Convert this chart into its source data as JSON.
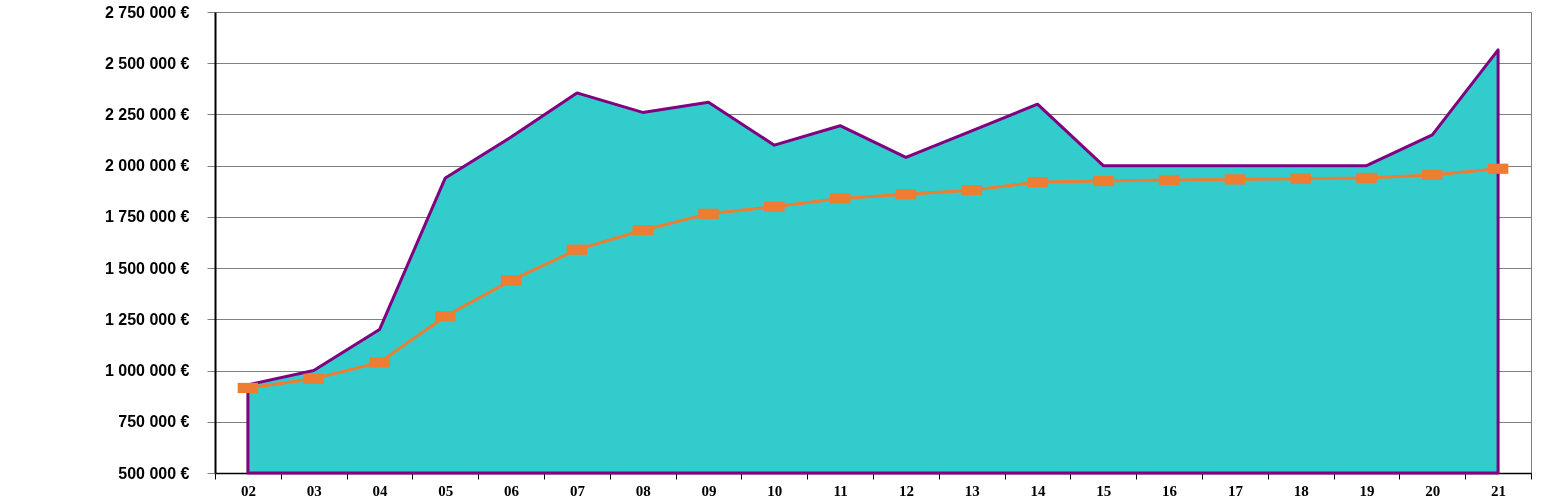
{
  "chart_data": {
    "type": "area",
    "categories": [
      "02",
      "03",
      "04",
      "05",
      "06",
      "07",
      "08",
      "09",
      "10",
      "11",
      "12",
      "13",
      "14",
      "15",
      "16",
      "17",
      "18",
      "19",
      "20",
      "21"
    ],
    "series": [
      {
        "color": "#33cccc",
        "values": [
          930000,
          1000000,
          1200000,
          1940000,
          2140000,
          2355000,
          2260000,
          2310000,
          2100000,
          2195000,
          2040000,
          2170000,
          2300000,
          2000000,
          2000000,
          2000000,
          2000000,
          2000000,
          2150000,
          2565000
        ]
      },
      {
        "type": "line",
        "color": "#ed7d31",
        "marker": "square",
        "values": [
          915000,
          960000,
          1040000,
          1265000,
          1440000,
          1590000,
          1685000,
          1765000,
          1800000,
          1840000,
          1860000,
          1880000,
          1920000,
          1925000,
          1930000,
          1933000,
          1936000,
          1940000,
          1955000,
          1985000
        ]
      }
    ],
    "ylim": [
      500000,
      2750000
    ],
    "yticks": [
      {
        "value": 500000,
        "label": "500 000 €"
      },
      {
        "value": 750000,
        "label": "750 000 €"
      },
      {
        "value": 1000000,
        "label": "1 000 000 €"
      },
      {
        "value": 1250000,
        "label": "1 250 000 €"
      },
      {
        "value": 1500000,
        "label": "1 500 000 €"
      },
      {
        "value": 1750000,
        "label": "1 750 000 €"
      },
      {
        "value": 2000000,
        "label": "2 000 000 €"
      },
      {
        "value": 2250000,
        "label": "2 250 000 €"
      },
      {
        "value": 2500000,
        "label": "2 500 000 €"
      },
      {
        "value": 2750000,
        "label": "2 750 000 €"
      }
    ],
    "grid": "y"
  }
}
